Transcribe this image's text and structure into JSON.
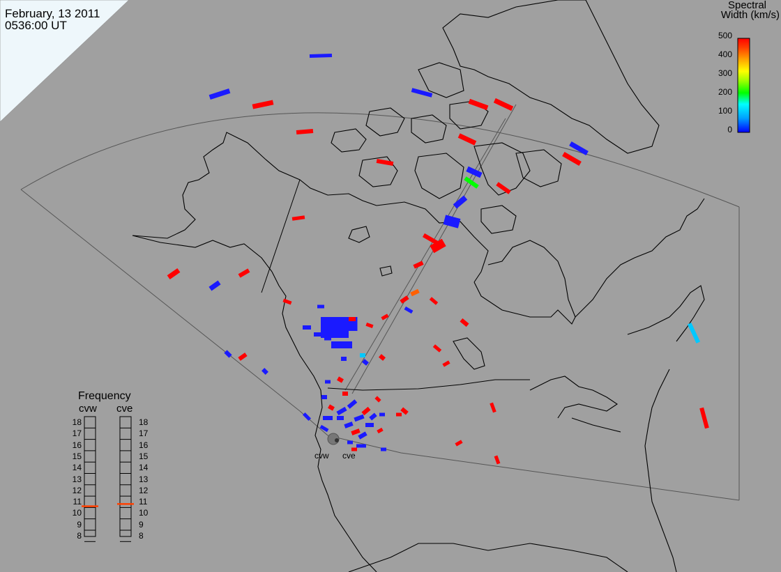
{
  "header": {
    "date": "February, 13 2011",
    "time": "0536:00 UT"
  },
  "colorbar": {
    "title_line1": "Spectral",
    "title_line2": "Width (km/s)",
    "ticks": [
      "500",
      "400",
      "300",
      "200",
      "100",
      "0"
    ],
    "colors": [
      "#0000ff",
      "#00a0ff",
      "#00ffff",
      "#00ff00",
      "#a0ff00",
      "#ffff00",
      "#ffa000",
      "#ff4000",
      "#ff0000"
    ]
  },
  "radars": {
    "west": "cvw",
    "east": "cve"
  },
  "frequency": {
    "title": "Frequency",
    "west_label": "cvw",
    "east_label": "cve",
    "ticks": [
      "18",
      "17",
      "16",
      "15",
      "14",
      "13",
      "12",
      "11",
      "10",
      "9",
      "8"
    ],
    "west_value_mhz": 10.6,
    "east_value_mhz": 10.8
  },
  "colors": {
    "background": "#a0a0a0",
    "ice": "#eef7fb",
    "land_outline": "#000000",
    "fov_outline": "#555555",
    "marker": "#ff4000"
  }
}
